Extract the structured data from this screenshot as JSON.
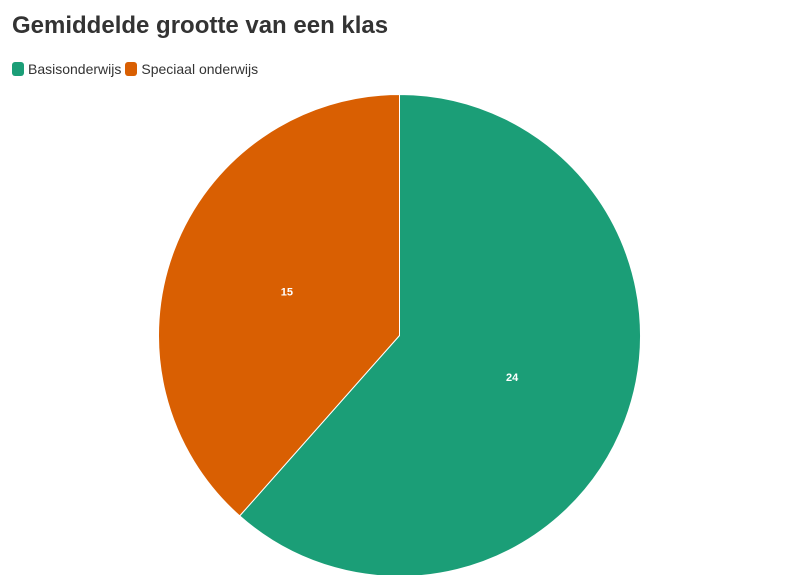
{
  "chart_data": {
    "type": "pie",
    "title": "Gemiddelde grootte van een klas",
    "legend_position": "top-left",
    "categories": [
      "Basisonderwijs",
      "Speciaal onderwijs"
    ],
    "values": [
      24,
      15
    ],
    "colors": [
      "#1b9e77",
      "#d95f02"
    ],
    "slice_labels": [
      "24",
      "15"
    ]
  }
}
